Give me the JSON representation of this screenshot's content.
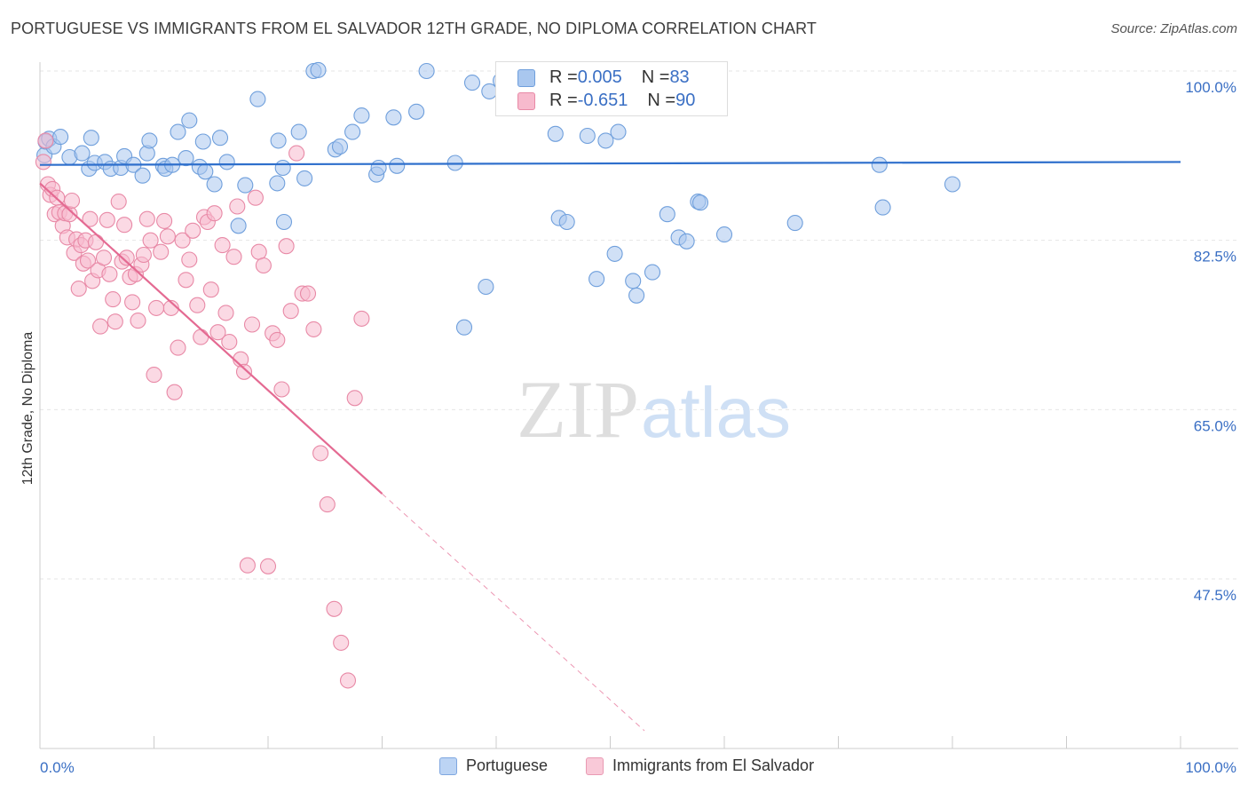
{
  "title": "PORTUGUESE VS IMMIGRANTS FROM EL SALVADOR 12TH GRADE, NO DIPLOMA CORRELATION CHART",
  "source": "Source: ZipAtlas.com",
  "watermark": {
    "zip": "ZIP",
    "atlas": "atlas"
  },
  "stats": [
    {
      "r_label": "R = ",
      "r_value": "0.005",
      "n_label": "N = ",
      "n_value": "83",
      "color": "#a9c7ef",
      "border": "#6f9fdc"
    },
    {
      "r_label": "R = ",
      "r_value": "-0.651",
      "n_label": "N = ",
      "n_value": "90",
      "color": "#f7bacd",
      "border": "#e889a6"
    }
  ],
  "legend": [
    {
      "label": "Portuguese",
      "color": "#bcd4f4",
      "border": "#7fa7e0"
    },
    {
      "label": "Immigrants from El Salvador",
      "color": "#f9c9d8",
      "border": "#e99ab3"
    }
  ],
  "chart_data": {
    "type": "scatter",
    "ylabel": "12th Grade, No Diploma",
    "xlim": [
      0,
      100
    ],
    "ylim": [
      32,
      102.5
    ],
    "x_tick_labels": {
      "left": "0.0%",
      "right": "100.0%"
    },
    "y_ticks": [
      {
        "value": 100,
        "label": "100.0%"
      },
      {
        "value": 82.5,
        "label": "82.5%"
      },
      {
        "value": 65,
        "label": "65.0%"
      },
      {
        "value": 47.5,
        "label": "47.5%"
      }
    ],
    "grid": true,
    "series": [
      {
        "name": "Portuguese",
        "color": "#a9c7ef",
        "stroke": "#6f9fdc",
        "trend": {
          "x": [
            0,
            100
          ],
          "y": [
            90.3,
            90.6
          ],
          "color": "#2e6fcc"
        },
        "points": [
          [
            0.4,
            91.3
          ],
          [
            0.5,
            92.7
          ],
          [
            0.8,
            93.0
          ],
          [
            1.2,
            92.2
          ],
          [
            1.8,
            93.2
          ],
          [
            2.6,
            91.1
          ],
          [
            3.7,
            91.5
          ],
          [
            4.3,
            89.9
          ],
          [
            4.5,
            93.1
          ],
          [
            4.8,
            90.5
          ],
          [
            5.7,
            90.6
          ],
          [
            6.2,
            89.9
          ],
          [
            7.1,
            90.0
          ],
          [
            7.4,
            91.2
          ],
          [
            8.2,
            90.3
          ],
          [
            9.0,
            89.2
          ],
          [
            9.4,
            91.5
          ],
          [
            9.6,
            92.8
          ],
          [
            10.8,
            90.2
          ],
          [
            11.0,
            89.9
          ],
          [
            11.6,
            90.3
          ],
          [
            12.1,
            93.7
          ],
          [
            12.8,
            91.0
          ],
          [
            13.1,
            94.9
          ],
          [
            14.0,
            90.1
          ],
          [
            14.3,
            92.7
          ],
          [
            14.5,
            89.6
          ],
          [
            15.3,
            88.3
          ],
          [
            15.8,
            93.1
          ],
          [
            16.4,
            90.6
          ],
          [
            17.4,
            84.0
          ],
          [
            18.0,
            88.2
          ],
          [
            19.1,
            97.1
          ],
          [
            20.8,
            88.4
          ],
          [
            20.9,
            92.8
          ],
          [
            21.3,
            90.0
          ],
          [
            21.4,
            84.4
          ],
          [
            22.7,
            93.7
          ],
          [
            23.2,
            88.9
          ],
          [
            24.0,
            100.0
          ],
          [
            24.4,
            100.1
          ],
          [
            25.9,
            91.9
          ],
          [
            26.3,
            92.2
          ],
          [
            27.4,
            93.7
          ],
          [
            28.2,
            95.4
          ],
          [
            29.5,
            89.3
          ],
          [
            29.7,
            90.0
          ],
          [
            31.0,
            95.2
          ],
          [
            31.3,
            90.2
          ],
          [
            33.0,
            95.8
          ],
          [
            33.9,
            100.0
          ],
          [
            36.4,
            90.5
          ],
          [
            37.2,
            73.5
          ],
          [
            37.9,
            98.8
          ],
          [
            39.1,
            77.7
          ],
          [
            39.4,
            97.9
          ],
          [
            40.4,
            99.0
          ],
          [
            41.0,
            96.5
          ],
          [
            42.7,
            100.0
          ],
          [
            43.8,
            97.4
          ],
          [
            45.2,
            93.5
          ],
          [
            45.5,
            84.8
          ],
          [
            46.2,
            84.4
          ],
          [
            48.0,
            93.3
          ],
          [
            48.8,
            78.5
          ],
          [
            49.6,
            92.8
          ],
          [
            50.4,
            81.1
          ],
          [
            50.7,
            93.7
          ],
          [
            52.0,
            78.3
          ],
          [
            52.3,
            76.8
          ],
          [
            53.1,
            96.6
          ],
          [
            53.7,
            79.2
          ],
          [
            55.0,
            85.2
          ],
          [
            55.4,
            100.0
          ],
          [
            56.0,
            82.8
          ],
          [
            56.7,
            82.4
          ],
          [
            57.7,
            86.5
          ],
          [
            57.9,
            86.4
          ],
          [
            60.0,
            83.1
          ],
          [
            66.2,
            84.3
          ],
          [
            73.6,
            90.3
          ],
          [
            73.9,
            85.9
          ],
          [
            80.0,
            88.3
          ]
        ]
      },
      {
        "name": "Immigrants from El Salvador",
        "color": "#f7bacd",
        "stroke": "#e889a6",
        "trend": {
          "x": [
            0,
            30
          ],
          "y": [
            88.4,
            56.3
          ],
          "dash_to": [
            53,
            31.8
          ],
          "color": "#e46a92"
        },
        "points": [
          [
            0.3,
            90.6
          ],
          [
            0.5,
            92.8
          ],
          [
            0.7,
            88.3
          ],
          [
            0.9,
            87.2
          ],
          [
            1.1,
            87.8
          ],
          [
            1.3,
            85.2
          ],
          [
            1.5,
            86.9
          ],
          [
            1.7,
            85.4
          ],
          [
            2.0,
            84.0
          ],
          [
            2.2,
            85.3
          ],
          [
            2.4,
            82.8
          ],
          [
            2.6,
            85.2
          ],
          [
            2.8,
            86.6
          ],
          [
            3.0,
            81.2
          ],
          [
            3.2,
            82.6
          ],
          [
            3.4,
            77.5
          ],
          [
            3.6,
            82.0
          ],
          [
            3.8,
            80.1
          ],
          [
            4.0,
            82.5
          ],
          [
            4.2,
            80.4
          ],
          [
            4.4,
            84.7
          ],
          [
            4.6,
            78.3
          ],
          [
            4.9,
            82.3
          ],
          [
            5.1,
            79.4
          ],
          [
            5.3,
            73.6
          ],
          [
            5.6,
            80.7
          ],
          [
            5.9,
            84.6
          ],
          [
            6.1,
            79.0
          ],
          [
            6.4,
            76.4
          ],
          [
            6.6,
            74.1
          ],
          [
            6.9,
            86.5
          ],
          [
            7.2,
            80.3
          ],
          [
            7.4,
            84.1
          ],
          [
            7.6,
            80.7
          ],
          [
            7.9,
            78.7
          ],
          [
            8.1,
            76.1
          ],
          [
            8.4,
            79.0
          ],
          [
            8.6,
            74.2
          ],
          [
            8.9,
            80.0
          ],
          [
            9.1,
            81.0
          ],
          [
            9.4,
            84.7
          ],
          [
            9.7,
            82.5
          ],
          [
            10.0,
            68.6
          ],
          [
            10.2,
            75.5
          ],
          [
            10.6,
            81.3
          ],
          [
            10.9,
            84.5
          ],
          [
            11.2,
            82.9
          ],
          [
            11.5,
            75.5
          ],
          [
            11.8,
            66.8
          ],
          [
            12.1,
            71.4
          ],
          [
            12.5,
            82.5
          ],
          [
            12.8,
            78.4
          ],
          [
            13.1,
            80.5
          ],
          [
            13.4,
            83.5
          ],
          [
            13.8,
            75.8
          ],
          [
            14.1,
            72.5
          ],
          [
            14.4,
            84.9
          ],
          [
            14.7,
            84.4
          ],
          [
            15.0,
            77.4
          ],
          [
            15.3,
            85.3
          ],
          [
            15.6,
            73.0
          ],
          [
            16.0,
            82.0
          ],
          [
            16.3,
            75.0
          ],
          [
            16.6,
            72.0
          ],
          [
            17.0,
            80.8
          ],
          [
            17.3,
            86.0
          ],
          [
            17.6,
            70.2
          ],
          [
            17.9,
            68.9
          ],
          [
            18.2,
            48.9
          ],
          [
            18.6,
            73.8
          ],
          [
            18.9,
            86.9
          ],
          [
            19.2,
            81.3
          ],
          [
            19.6,
            79.9
          ],
          [
            20.0,
            48.8
          ],
          [
            20.4,
            72.9
          ],
          [
            20.8,
            72.2
          ],
          [
            21.2,
            67.1
          ],
          [
            21.6,
            81.9
          ],
          [
            22.0,
            75.2
          ],
          [
            22.5,
            91.5
          ],
          [
            23.0,
            77.0
          ],
          [
            23.5,
            77.0
          ],
          [
            24.0,
            73.3
          ],
          [
            24.6,
            60.5
          ],
          [
            25.2,
            55.2
          ],
          [
            25.8,
            44.4
          ],
          [
            26.4,
            40.9
          ],
          [
            27.0,
            37.0
          ],
          [
            27.6,
            66.2
          ],
          [
            28.2,
            74.4
          ]
        ]
      }
    ]
  }
}
